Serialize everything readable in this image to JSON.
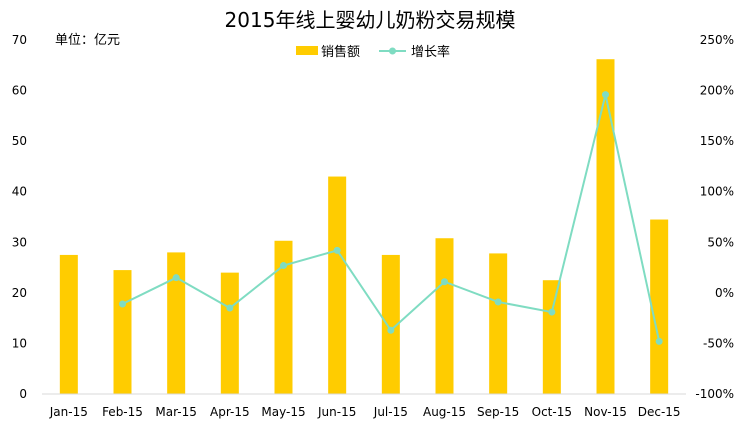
{
  "chart_data": {
    "type": "bar",
    "title": "2015年线上婴幼儿奶粉交易规模",
    "unit_label": "单位：亿元",
    "categories": [
      "Jan-15",
      "Feb-15",
      "Mar-15",
      "Apr-15",
      "May-15",
      "Jun-15",
      "Jul-15",
      "Aug-15",
      "Sep-15",
      "Oct-15",
      "Nov-15",
      "Dec-15"
    ],
    "series": [
      {
        "name": "销售额",
        "type": "bar",
        "axis": "left",
        "color": "#FFCC00",
        "values": [
          27.5,
          24.5,
          28.0,
          24.0,
          30.3,
          43.0,
          27.5,
          30.8,
          27.8,
          22.5,
          66.2,
          34.5
        ]
      },
      {
        "name": "增长率",
        "type": "line",
        "axis": "right",
        "color": "#7FDCC2",
        "values": [
          null,
          -11,
          15,
          -15,
          27,
          42,
          -37,
          11,
          -9,
          -19,
          196,
          -48
        ]
      }
    ],
    "y_left": {
      "min": 0,
      "max": 70,
      "ticks": [
        "0",
        "10",
        "20",
        "30",
        "40",
        "50",
        "60",
        "70"
      ]
    },
    "y_right": {
      "min": -100,
      "max": 250,
      "ticks": [
        "-100%",
        "-50%",
        "0%",
        "50%",
        "100%",
        "150%",
        "200%",
        "250%"
      ]
    },
    "grid": false,
    "legend_position": "top-center"
  }
}
